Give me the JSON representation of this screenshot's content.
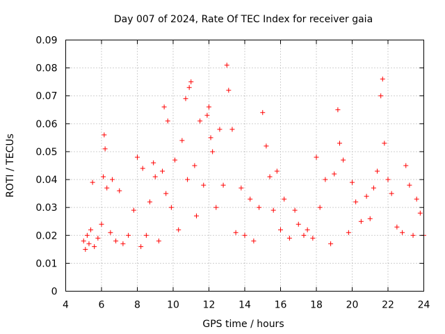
{
  "chart_data": {
    "type": "scatter",
    "title": "Day 007 of 2024, Rate Of TEC Index for receiver gaia",
    "xlabel": "GPS time / hours",
    "ylabel": "ROTI / TECUs",
    "xlim": [
      4,
      24
    ],
    "ylim": [
      0,
      0.09
    ],
    "xticks": [
      4,
      6,
      8,
      10,
      12,
      14,
      16,
      18,
      20,
      22,
      24
    ],
    "xtick_labels": [
      "4",
      "6",
      "8",
      "10",
      "12",
      "14",
      "16",
      "18",
      "20",
      "22",
      "24"
    ],
    "yticks": [
      0,
      0.01,
      0.02,
      0.03,
      0.04,
      0.05,
      0.06,
      0.07,
      0.08,
      0.09
    ],
    "ytick_labels": [
      "0",
      "0.01",
      "0.02",
      "0.03",
      "0.04",
      "0.05",
      "0.06",
      "0.07",
      "0.08",
      "0.09"
    ],
    "grid": true,
    "marker": "+",
    "color": "#ff0000",
    "series": [
      {
        "name": "ROTI",
        "x": [
          5.0,
          5.1,
          5.2,
          5.3,
          5.4,
          5.5,
          5.6,
          5.8,
          6.0,
          6.1,
          6.15,
          6.2,
          6.3,
          6.5,
          6.6,
          6.8,
          7.0,
          7.2,
          7.5,
          7.8,
          8.0,
          8.2,
          8.3,
          8.5,
          8.7,
          8.9,
          9.0,
          9.2,
          9.4,
          9.5,
          9.6,
          9.7,
          9.9,
          10.1,
          10.3,
          10.5,
          10.7,
          10.8,
          10.9,
          11.0,
          11.2,
          11.3,
          11.5,
          11.7,
          11.9,
          12.0,
          12.1,
          12.2,
          12.4,
          12.6,
          12.8,
          13.0,
          13.1,
          13.3,
          13.5,
          13.8,
          14.0,
          14.3,
          14.5,
          14.8,
          15.0,
          15.2,
          15.4,
          15.6,
          15.8,
          16.0,
          16.2,
          16.5,
          16.8,
          17.0,
          17.3,
          17.5,
          17.8,
          18.0,
          18.2,
          18.5,
          18.8,
          19.0,
          19.2,
          19.3,
          19.5,
          19.8,
          20.0,
          20.2,
          20.5,
          20.8,
          21.0,
          21.2,
          21.4,
          21.6,
          21.7,
          21.8,
          22.0,
          22.2,
          22.5,
          22.8,
          23.0,
          23.2,
          23.4,
          23.6,
          23.8,
          24.0
        ],
        "y": [
          0.018,
          0.015,
          0.02,
          0.017,
          0.022,
          0.039,
          0.016,
          0.019,
          0.024,
          0.041,
          0.056,
          0.051,
          0.037,
          0.021,
          0.04,
          0.018,
          0.036,
          0.017,
          0.02,
          0.029,
          0.048,
          0.016,
          0.044,
          0.02,
          0.032,
          0.046,
          0.041,
          0.018,
          0.043,
          0.066,
          0.035,
          0.061,
          0.03,
          0.047,
          0.022,
          0.054,
          0.069,
          0.04,
          0.073,
          0.075,
          0.045,
          0.027,
          0.061,
          0.038,
          0.063,
          0.066,
          0.055,
          0.05,
          0.03,
          0.058,
          0.038,
          0.081,
          0.072,
          0.058,
          0.021,
          0.037,
          0.02,
          0.033,
          0.018,
          0.03,
          0.064,
          0.052,
          0.041,
          0.029,
          0.043,
          0.022,
          0.033,
          0.019,
          0.029,
          0.024,
          0.02,
          0.022,
          0.019,
          0.048,
          0.03,
          0.04,
          0.017,
          0.042,
          0.065,
          0.053,
          0.047,
          0.021,
          0.039,
          0.032,
          0.025,
          0.034,
          0.026,
          0.037,
          0.043,
          0.07,
          0.076,
          0.053,
          0.04,
          0.035,
          0.023,
          0.021,
          0.045,
          0.038,
          0.02,
          0.033,
          0.028,
          0.02
        ]
      }
    ]
  }
}
